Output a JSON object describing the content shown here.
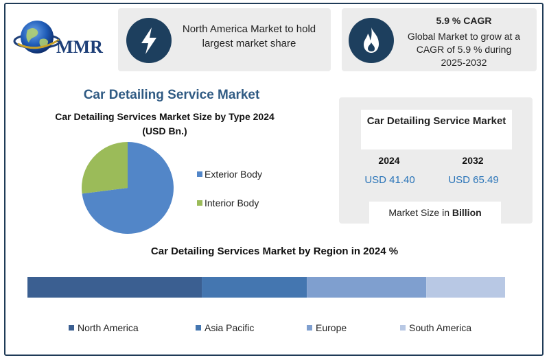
{
  "brand": {
    "name": "MMR"
  },
  "cards": {
    "north_america": {
      "icon": "lightning-bolt-icon",
      "text": "North America Market to hold largest market share"
    },
    "cagr": {
      "icon": "flame-icon",
      "title": "5.9 % CAGR",
      "text": "Global Market to grow at a CAGR of 5.9 % during 2025-2032"
    }
  },
  "market_size": {
    "title": "Car Detailing Service Market",
    "year_1": "2024",
    "value_1": "USD 41.40",
    "year_2": "2032",
    "value_2": "USD 65.49",
    "footer_prefix": "Market Size in ",
    "footer_unit": "Billion"
  },
  "colors": {
    "navy": "#1d3f5e",
    "title_blue": "#2f5a83",
    "value_blue": "#2a74b8"
  },
  "chart_data": [
    {
      "type": "pie",
      "section_title": "Car Detailing Service Market",
      "title": "Car Detailing Services Market Size by Type 2024",
      "subtitle": "(USD Bn.)",
      "categories": [
        "Exterior Body",
        "Interior Body"
      ],
      "values": [
        73,
        27
      ],
      "colors": [
        "#5286c8",
        "#9bbb59"
      ],
      "legend": "right"
    },
    {
      "type": "bar",
      "orientation": "horizontal-stacked",
      "title": "Car Detailing Services Market by Region in 2024 %",
      "categories": [
        "North America",
        "Asia Pacific",
        "Europe",
        "South America"
      ],
      "values": [
        36.5,
        22,
        25,
        16.5
      ],
      "colors": [
        "#3b5f91",
        "#4476b0",
        "#7f9fcf",
        "#b8c8e4"
      ],
      "legend": "bottom"
    }
  ]
}
